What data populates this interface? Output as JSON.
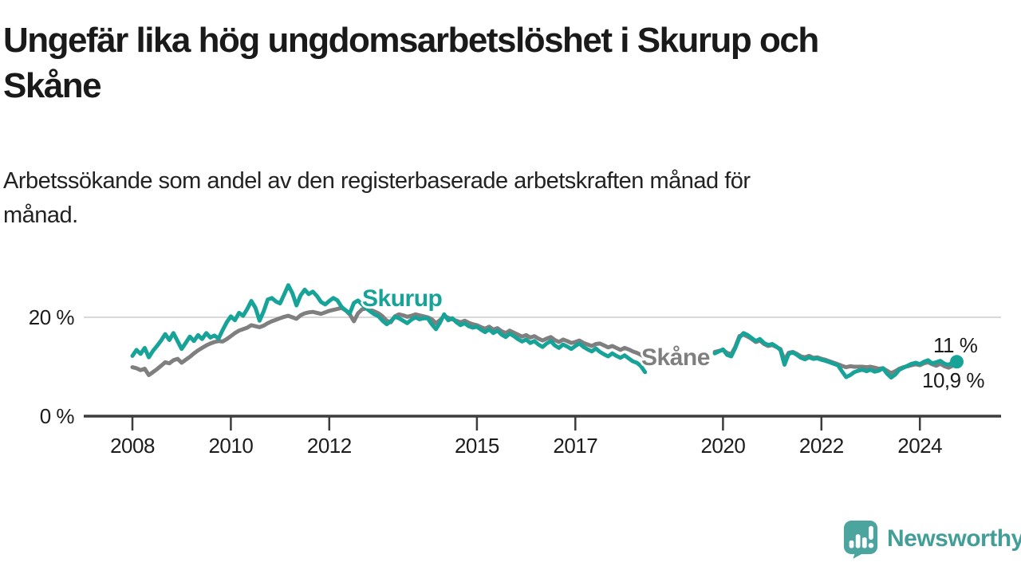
{
  "header": {
    "title_lines": [
      "Ungefär lika hög ungdomsarbetslöshet i Skurup och",
      "Skåne"
    ],
    "subtitle_lines": [
      "Arbetssökande som andel av den registerbaserade arbetskraften månad för",
      "månad."
    ]
  },
  "chart_data": {
    "type": "line",
    "title": "Ungefär lika hög ungdomsarbetslöshet i Skurup och Skåne",
    "subtitle": "Arbetssökande som andel av den registerbaserade arbetskraften månad för månad.",
    "unit": "%",
    "x_start_year": 2008.0,
    "x_step_months": 1,
    "x_ticks": [
      {
        "year": 2008,
        "label": "2008"
      },
      {
        "year": 2010,
        "label": "2010"
      },
      {
        "year": 2012,
        "label": "2012"
      },
      {
        "year": 2015,
        "label": "2015"
      },
      {
        "year": 2017,
        "label": "2017"
      },
      {
        "year": 2020,
        "label": "2020"
      },
      {
        "year": 2022,
        "label": "2022"
      },
      {
        "year": 2024,
        "label": "2024"
      }
    ],
    "y_ticks": [
      {
        "value": 0,
        "label": "0 %"
      },
      {
        "value": 20,
        "label": "20 %"
      }
    ],
    "ylim": [
      0,
      28
    ],
    "grid": true,
    "series": [
      {
        "name": "Skåne",
        "color": "#7f7f7f",
        "values": [
          9.9,
          9.7,
          9.3,
          9.6,
          8.3,
          8.9,
          9.5,
          10.2,
          10.9,
          10.7,
          11.3,
          11.6,
          10.8,
          11.4,
          12.0,
          12.7,
          13.3,
          13.8,
          14.3,
          14.7,
          15.0,
          15.2,
          15.1,
          15.6,
          16.2,
          16.8,
          17.3,
          17.6,
          17.9,
          18.4,
          18.2,
          18.0,
          18.3,
          18.8,
          19.2,
          19.5,
          19.8,
          20.1,
          20.3,
          20.0,
          19.7,
          20.4,
          20.8,
          21.0,
          21.1,
          20.9,
          20.7,
          21.0,
          21.3,
          21.5,
          21.7,
          21.9,
          21.4,
          20.6,
          19.2,
          20.8,
          21.6,
          21.8,
          21.5,
          21.2,
          20.8,
          20.2,
          19.3,
          19.0,
          20.2,
          20.6,
          20.4,
          20.1,
          20.3,
          20.6,
          20.4,
          20.2,
          20.0,
          19.6,
          18.8,
          19.4,
          20.3,
          19.9,
          19.6,
          19.3,
          19.0,
          19.3,
          18.9,
          18.6,
          18.4,
          18.0,
          17.7,
          18.1,
          17.5,
          17.8,
          17.2,
          16.8,
          17.3,
          16.9,
          16.5,
          16.1,
          16.4,
          15.9,
          16.2,
          15.7,
          15.3,
          15.7,
          16.0,
          15.4,
          15.0,
          15.5,
          15.2,
          14.8,
          15.0,
          15.3,
          14.8,
          14.5,
          14.2,
          14.6,
          14.7,
          14.3,
          13.9,
          14.2,
          13.8,
          13.4,
          13.8,
          13.5,
          13.1,
          12.8,
          12.4,
          11.9,
          null,
          null,
          null,
          null,
          null,
          null,
          null,
          null,
          null,
          null,
          null,
          null,
          null,
          null,
          null,
          null,
          13.0,
          13.2,
          13.4,
          12.8,
          12.5,
          14.0,
          16.2,
          16.5,
          16.1,
          15.6,
          15.0,
          15.3,
          14.6,
          14.2,
          14.4,
          14.0,
          13.6,
          11.3,
          12.8,
          13.0,
          12.6,
          12.1,
          11.9,
          12.2,
          11.8,
          11.9,
          11.6,
          11.4,
          11.1,
          10.8,
          10.5,
          10.2,
          9.9,
          10.1,
          10.0,
          10.0,
          10.0,
          9.9,
          10.0,
          9.8,
          9.6,
          9.7,
          9.2,
          8.7,
          9.1,
          9.6,
          9.9,
          10.1,
          10.3,
          10.5,
          10.3,
          10.7,
          10.9,
          10.5,
          10.2,
          10.6,
          10.1,
          9.8,
          10.2,
          10.9
        ]
      },
      {
        "name": "Skurup",
        "color": "#17a398",
        "values": [
          12.2,
          13.4,
          12.6,
          13.8,
          11.9,
          13.2,
          14.2,
          15.3,
          16.6,
          15.4,
          16.8,
          15.2,
          13.6,
          14.8,
          16.1,
          15.2,
          16.4,
          15.6,
          16.8,
          15.9,
          16.3,
          15.7,
          17.4,
          19.0,
          20.2,
          19.4,
          20.9,
          20.3,
          21.7,
          23.3,
          21.9,
          19.3,
          21.2,
          23.6,
          23.9,
          23.2,
          22.8,
          24.6,
          26.5,
          24.9,
          22.4,
          24.4,
          25.6,
          24.7,
          25.2,
          24.3,
          23.1,
          22.6,
          23.3,
          23.9,
          23.4,
          22.1,
          21.4,
          20.8,
          22.9,
          23.4,
          22.6,
          21.8,
          21.2,
          20.6,
          20.2,
          19.3,
          18.6,
          19.2,
          20.1,
          19.8,
          19.3,
          18.8,
          19.5,
          20.0,
          19.6,
          19.8,
          19.8,
          18.6,
          17.6,
          18.9,
          20.6,
          19.4,
          19.8,
          19.0,
          18.4,
          18.8,
          18.2,
          17.9,
          18.1,
          17.5,
          17.0,
          17.6,
          16.8,
          17.3,
          16.5,
          16.0,
          16.7,
          16.2,
          15.6,
          15.1,
          15.5,
          14.8,
          15.2,
          14.5,
          14.0,
          14.7,
          15.2,
          14.3,
          13.8,
          14.5,
          14.1,
          13.6,
          14.2,
          14.7,
          14.0,
          13.5,
          13.1,
          13.7,
          13.0,
          12.5,
          12.1,
          12.7,
          12.2,
          11.8,
          12.3,
          11.7,
          11.1,
          10.8,
          10.1,
          8.9,
          null,
          null,
          null,
          null,
          null,
          null,
          null,
          null,
          null,
          null,
          null,
          null,
          null,
          null,
          null,
          null,
          12.7,
          13.1,
          13.5,
          12.4,
          12.1,
          13.8,
          15.9,
          16.8,
          16.4,
          15.8,
          15.2,
          15.6,
          14.8,
          14.4,
          14.6,
          14.1,
          13.4,
          10.4,
          12.6,
          12.9,
          12.4,
          11.8,
          11.5,
          11.9,
          11.6,
          11.7,
          11.4,
          11.2,
          10.9,
          10.6,
          10.3,
          9.1,
          7.9,
          8.3,
          8.9,
          9.2,
          9.4,
          9.1,
          9.4,
          9.0,
          9.2,
          9.7,
          8.6,
          7.8,
          8.4,
          9.4,
          9.8,
          10.2,
          10.6,
          10.8,
          10.5,
          11.0,
          11.3,
          10.7,
          10.9,
          11.2,
          10.6,
          10.4,
          10.8,
          11.0
        ]
      }
    ],
    "annotations": {
      "series_label_skurup": "Skurup",
      "series_label_skane": "Skåne",
      "end_label_skurup": "11 %",
      "end_label_skane": "10,9 %"
    },
    "end_dot": {
      "series": "Skurup"
    },
    "legend_position": "inline-labels"
  },
  "footer": {
    "brand": "Newsworthy",
    "brand_color": "#429e97"
  },
  "colors": {
    "skurup_line": "#17a398",
    "skane_line": "#7f7f7f",
    "gridline": "#d9d9d9",
    "axis": "#3c3c3c",
    "text": "#1a1a1a"
  }
}
